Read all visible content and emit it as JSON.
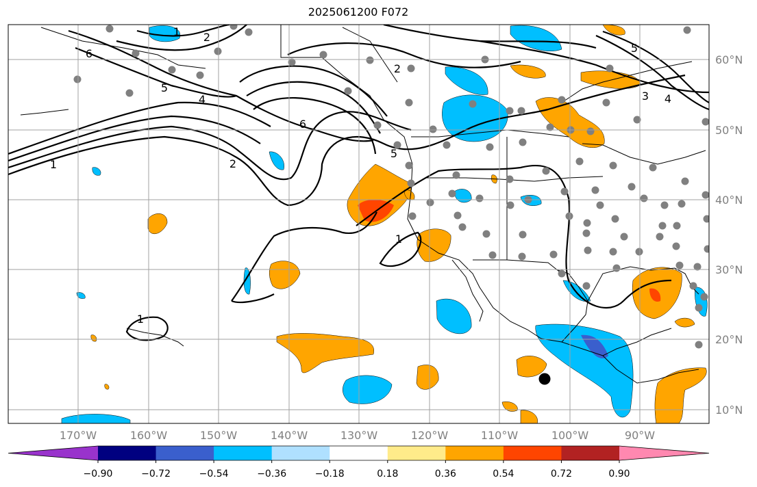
{
  "title": "2025061200 F072",
  "lon_labels": [
    "170°W",
    "160°W",
    "150°W",
    "140°W",
    "130°W",
    "120°W",
    "110°W",
    "100°W",
    "90°W"
  ],
  "lat_labels": [
    "60°N",
    "50°N",
    "40°N",
    "30°N",
    "20°N",
    "10°N"
  ],
  "contour_labels": [
    "1",
    "2",
    "6",
    "5",
    "4",
    "2",
    "6",
    "5",
    "1",
    "2",
    "1",
    "1",
    "3",
    "4",
    "5"
  ],
  "colorbar": {
    "colors": [
      "#9933cc",
      "#000080",
      "#3a5fcd",
      "#00bfff",
      "#afe0ff",
      "#ffffff",
      "#ffeb8a",
      "#ffa500",
      "#ff4500",
      "#b22222",
      "#ff88b0"
    ],
    "ticks": [
      "−0.90",
      "−0.72",
      "−0.54",
      "−0.36",
      "−0.18",
      "0.18",
      "0.36",
      "0.54",
      "0.72",
      "0.90"
    ]
  },
  "colors": {
    "positive_mid": "#ffa500",
    "positive_high": "#ff4500",
    "negative_mid": "#00bfff",
    "negative_high": "#3a5fcd",
    "grid": "#a0a0a0",
    "station": "#808080"
  }
}
